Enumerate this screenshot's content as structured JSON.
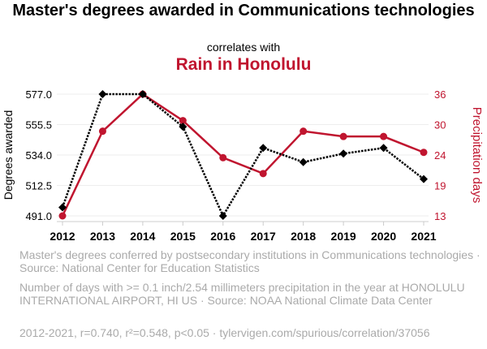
{
  "title": "Master's degrees awarded in Communications technologies",
  "subtitle": "correlates with",
  "title2": "Rain in Honolulu",
  "legend": [
    "Master's degrees conferred by postsecondary institutions in Communications technologies · Source: National Center for Education Statistics",
    "Number of days with >= 0.1 inch/2.54 millimeters precipitation in the year at HONOLULU INTERNATIONAL AIRPORT, HI US · Source: NOAA National Climate Data Center"
  ],
  "footer": "2012-2021, r=0.740, r²=0.548, p<0.05 · tylervigen.com/spurious/correlation/37056",
  "chart_data": {
    "type": "line",
    "x": [
      2012,
      2013,
      2014,
      2015,
      2016,
      2017,
      2018,
      2019,
      2020,
      2021
    ],
    "ylabel": "Degrees awarded",
    "y2label": "Precipitation days",
    "ylim": [
      491,
      577
    ],
    "y2lim": [
      13,
      36
    ],
    "yticks": [
      "491.0",
      "512.5",
      "534.0",
      "555.5",
      "577.0"
    ],
    "y2ticks": [
      "13",
      "19",
      "24",
      "30",
      "36"
    ],
    "series": [
      {
        "name": "Master's degrees",
        "axis": "left",
        "color": "#000000",
        "values": [
          497,
          577,
          577,
          554,
          491,
          539,
          529,
          535,
          539,
          517
        ]
      },
      {
        "name": "Precipitation days",
        "axis": "right",
        "color": "#c0152f",
        "values": [
          13,
          29,
          36,
          31,
          24,
          21,
          29,
          28,
          28,
          25
        ]
      }
    ]
  }
}
